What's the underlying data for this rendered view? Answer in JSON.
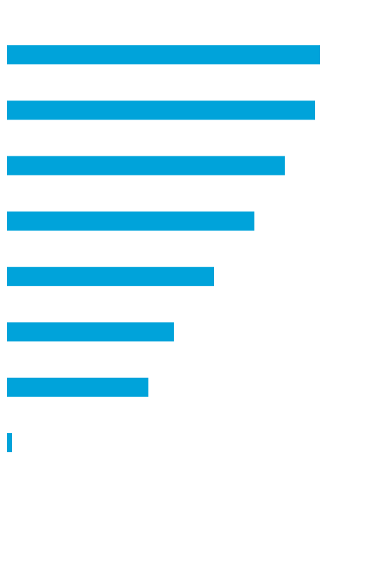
{
  "chart_data": {
    "type": "bar",
    "orientation": "horizontal",
    "categories": [
      null,
      null,
      null,
      null,
      null,
      null,
      null,
      null
    ],
    "values": [
      443,
      436,
      393,
      350,
      293,
      236,
      200,
      7
    ],
    "color": "#00a3da"
  }
}
